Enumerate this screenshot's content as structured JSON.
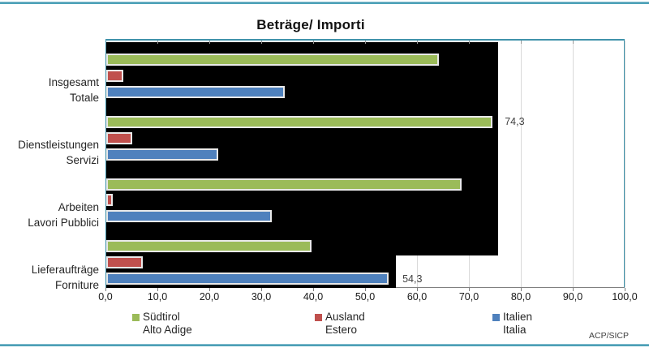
{
  "page": {
    "credit": "ACP/SICP"
  },
  "chart_data": {
    "type": "bar",
    "orientation": "horizontal",
    "title": "Beträge/ Importi",
    "categories": [
      [
        "Insgesamt",
        "Totale"
      ],
      [
        "Dienstleistungen",
        "Servizi"
      ],
      [
        "Arbeiten",
        "Lavori Pubblici"
      ],
      [
        "Lieferaufträge",
        "Forniture"
      ]
    ],
    "series": [
      {
        "name": "Südtirol",
        "name2": "Alto Adige",
        "color": "#9BBB59",
        "values": [
          64.0,
          74.3,
          68.5,
          39.5
        ]
      },
      {
        "name": "Ausland",
        "name2": "Estero",
        "color": "#C0504D",
        "values": [
          3.3,
          5.0,
          1.2,
          7.0
        ]
      },
      {
        "name": "Italien",
        "name2": "Italia",
        "color": "#4F81BD",
        "values": [
          34.3,
          21.5,
          31.8,
          54.3
        ]
      }
    ],
    "data_labels": [
      {
        "series": 0,
        "category": 1,
        "text": "74,3"
      },
      {
        "series": 2,
        "category": 3,
        "text": "54,3"
      }
    ],
    "x_ticks": [
      "0,0",
      "10,0",
      "20,0",
      "30,0",
      "40,0",
      "50,0",
      "60,0",
      "70,0",
      "80,0",
      "90,0",
      "100,0"
    ],
    "xlim": [
      0,
      100
    ],
    "grid": true,
    "gridline_color": "#D9D9D9",
    "plot_border_color": "#4093AB",
    "backdrop": {
      "color": "#000000",
      "upper_value": 75.5,
      "lower_value": 55.8
    },
    "legend_position": "bottom"
  }
}
